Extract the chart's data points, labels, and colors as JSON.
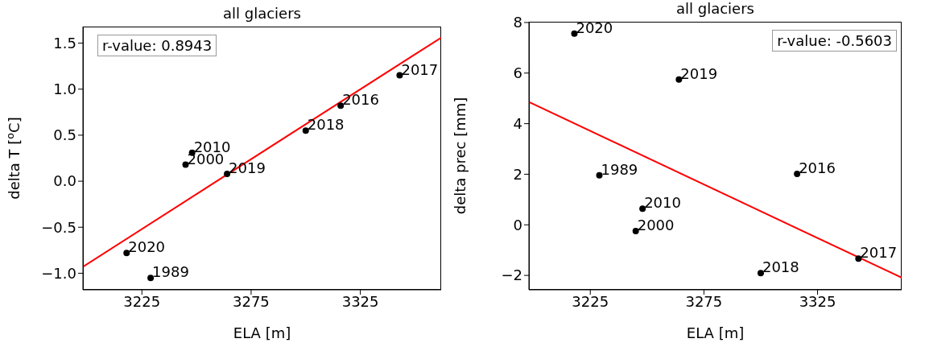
{
  "chart_data": [
    {
      "type": "scatter",
      "title": "all glaciers",
      "xlabel": "ELA [m]",
      "ylabel": "delta T [$^{o}$C]",
      "xlim": [
        3198,
        3362
      ],
      "xticks": [
        3225,
        3275,
        3325
      ],
      "ylim": [
        -1.18,
        1.68
      ],
      "yticks": [
        {
          "value": -1,
          "label": "−1.0"
        },
        {
          "value": -0.5,
          "label": "−0.5"
        },
        {
          "value": 0,
          "label": "0.0"
        },
        0.5,
        {
          "value": 1,
          "label": "1.0"
        },
        1.5
      ],
      "grid": false,
      "series": [
        {
          "type": "scatter",
          "color": "#000000",
          "marker": "circle",
          "x": [
            3229,
            3245,
            3248,
            3316,
            3343,
            3300,
            3264,
            3218
          ],
          "values": [
            -1.05,
            0.18,
            0.31,
            0.82,
            1.15,
            0.55,
            0.08,
            -0.78
          ]
        },
        {
          "type": "line",
          "color": "#ff0000",
          "x": [
            3198,
            3362
          ],
          "values": [
            -0.93,
            1.56
          ]
        }
      ],
      "annotations": [
        "r-value: 0.8943",
        {
          "text": "1989",
          "x": 3229,
          "y": -1.05
        },
        {
          "text": "2000",
          "x": 3245,
          "y": 0.18
        },
        {
          "text": "2010",
          "x": 3248,
          "y": 0.31
        },
        {
          "text": "2016",
          "x": 3316,
          "y": 0.82
        },
        {
          "text": "2017",
          "x": 3343,
          "y": 1.15
        },
        {
          "text": "2018",
          "x": 3300,
          "y": 0.55
        },
        {
          "text": "2019",
          "x": 3264,
          "y": 0.08
        },
        {
          "text": "2020",
          "x": 3218,
          "y": -0.78
        }
      ]
    },
    {
      "type": "scatter",
      "title": "all glaciers",
      "xlabel": "ELA [m]",
      "ylabel": "delta prec [mm]",
      "xlim": [
        3198,
        3362
      ],
      "xticks": [
        3225,
        3275,
        3325
      ],
      "ylim": [
        -2.57,
        8.03
      ],
      "yticks": [
        {
          "value": -2,
          "label": "−2"
        },
        0,
        2,
        4,
        6,
        8
      ],
      "grid": false,
      "series": [
        {
          "type": "scatter",
          "color": "#000000",
          "marker": "circle",
          "x": [
            3229,
            3245,
            3248,
            3316,
            3343,
            3300,
            3264,
            3218
          ],
          "values": [
            1.96,
            -0.25,
            0.64,
            2.01,
            -1.34,
            -1.91,
            5.75,
            7.56
          ]
        },
        {
          "type": "line",
          "color": "#ff0000",
          "x": [
            3198,
            3362
          ],
          "values": [
            4.86,
            -2.09
          ]
        }
      ],
      "annotations": [
        "r-value: -0.5603",
        {
          "text": "1989",
          "x": 3229,
          "y": 1.96
        },
        {
          "text": "2000",
          "x": 3245,
          "y": -0.25
        },
        {
          "text": "2010",
          "x": 3248,
          "y": 0.64
        },
        {
          "text": "2016",
          "x": 3316,
          "y": 2.01
        },
        {
          "text": "2017",
          "x": 3343,
          "y": -1.34
        },
        {
          "text": "2018",
          "x": 3300,
          "y": -1.91
        },
        {
          "text": "2019",
          "x": 3264,
          "y": 5.75
        },
        {
          "text": "2020",
          "x": 3218,
          "y": 7.56
        }
      ]
    }
  ]
}
